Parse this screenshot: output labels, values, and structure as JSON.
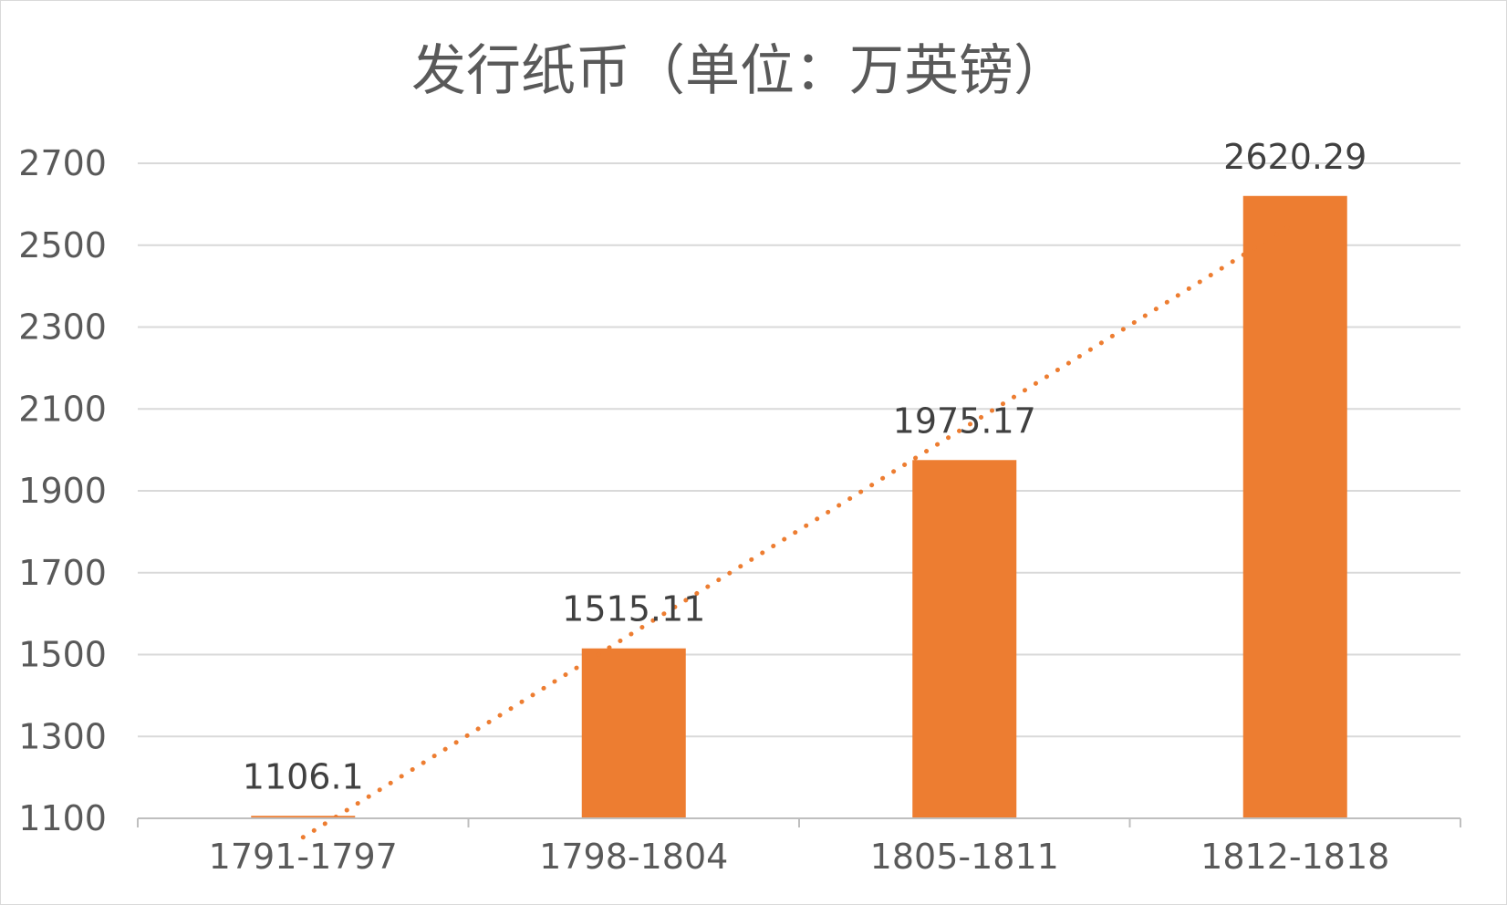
{
  "chart_data": {
    "type": "bar",
    "title": "发行纸币（单位：万英镑）",
    "categories": [
      "1791-1797",
      "1798-1804",
      "1805-1811",
      "1812-1818"
    ],
    "series": [
      {
        "values": [
          1106.1,
          1515.11,
          1975.17,
          2620.29
        ],
        "color": "#ed7d31"
      }
    ],
    "data_labels": [
      "1106.1",
      "1515.11",
      "1975.17",
      "2620.29"
    ],
    "y_ticks": [
      "1100",
      "1300",
      "1500",
      "1700",
      "1900",
      "2100",
      "2300",
      "2500",
      "2700"
    ],
    "ylim": [
      1100,
      2700
    ],
    "grid": true,
    "legend": "none",
    "trendline": {
      "type": "linear",
      "style": "dotted",
      "color": "#ed7d31"
    },
    "colors": {
      "bar": "#ed7d31",
      "grid": "#d9d9d9",
      "axis": "#bfbfbf",
      "text": "#595959"
    }
  }
}
